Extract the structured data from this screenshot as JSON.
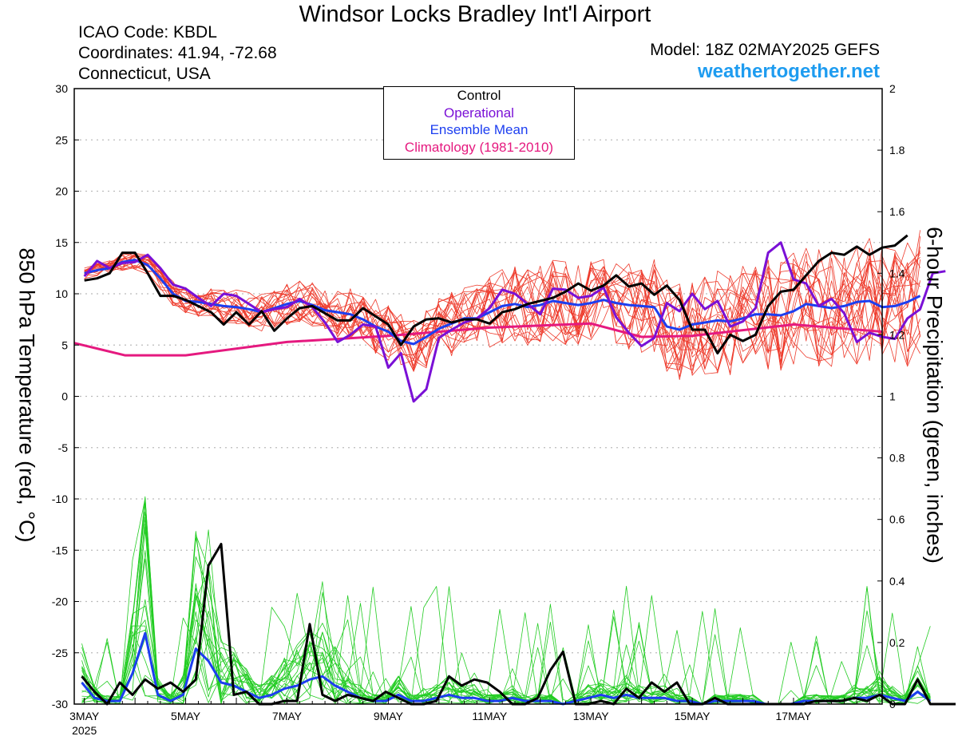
{
  "header": {
    "title": "Windsor Locks Bradley Int'l Airport",
    "icao": "ICAO Code: KBDL",
    "coords": "Coordinates: 41.94, -72.68",
    "region": "Connecticut, USA",
    "model": "Model: 18Z 02MAY2025 GEFS",
    "site": "weathertogether.net"
  },
  "legend": {
    "control": "Control",
    "operational": "Operational",
    "mean": "Ensemble Mean",
    "climatology": "Climatology (1981-2010)"
  },
  "colors": {
    "control": "#000000",
    "operational": "#7a10d6",
    "mean": "#1c3ef0",
    "climatology": "#e5197f",
    "members_temp": "#ee3b2c",
    "members_precip": "#22cc22",
    "site": "#1e9cf0"
  },
  "chart_data": {
    "type": "line",
    "ylabel_left": "850 hPa Temperature (red, °C)",
    "ylabel_right": "6-hour Precipitation (green, inches)",
    "ylim_left": [
      -30,
      30
    ],
    "ylim_right": [
      0,
      2
    ],
    "yticks_left": [
      "30",
      "25",
      "20",
      "15",
      "10",
      "5",
      "0",
      "-5",
      "-10",
      "-15",
      "-20",
      "-25",
      "-30"
    ],
    "yticks_right": [
      "2",
      "1.8",
      "1.6",
      "1.4",
      "1.2",
      "1",
      "0.8",
      "0.6",
      "0.4",
      "0.2",
      "0"
    ],
    "x_unit": "day offset from 3MAY 00Z",
    "xlim": [
      -0.2,
      15.75
    ],
    "xticks": [
      {
        "x": 0,
        "label": "3MAY",
        "sub": "2025"
      },
      {
        "x": 2,
        "label": "5MAY"
      },
      {
        "x": 4,
        "label": "7MAY"
      },
      {
        "x": 6,
        "label": "9MAY"
      },
      {
        "x": 8,
        "label": "11MAY"
      },
      {
        "x": 10,
        "label": "13MAY"
      },
      {
        "x": 12,
        "label": "15MAY"
      },
      {
        "x": 14,
        "label": "17MAY"
      }
    ],
    "grid": true,
    "series": [
      {
        "name": "Control",
        "axis": "left",
        "x_start": 0,
        "x_step": 0.25,
        "values": [
          11.3,
          11.5,
          12,
          14,
          14,
          12,
          9.8,
          9.8,
          9.4,
          8.8,
          8.2,
          7,
          8.2,
          7,
          8.3,
          6.4,
          7.6,
          8.6,
          8.8,
          8.1,
          7.4,
          7.4,
          8.6,
          7.8,
          7,
          5,
          6.8,
          7.5,
          7.6,
          7.2,
          7.5,
          7.5,
          7.1,
          8.2,
          8.5,
          9,
          9.3,
          9.6,
          10.2,
          11,
          10.3,
          10.8,
          11.8,
          10.7,
          11,
          9.9,
          10.8,
          9.4,
          6.5,
          6.5,
          4.2,
          6,
          5.4,
          6,
          8.8,
          10.2,
          10.4,
          11.8,
          13.2,
          14,
          13.8,
          14.6,
          13.8,
          14.5,
          14.7,
          15.7
        ]
      },
      {
        "name": "Operational",
        "axis": "left",
        "x_start": 0,
        "x_step": 0.25,
        "values": [
          11.7,
          13.2,
          12.5,
          13,
          13.1,
          13.8,
          12.5,
          10.9,
          10.5,
          9.6,
          8.8,
          10,
          9.8,
          9,
          8.2,
          8.5,
          8.7,
          9.5,
          8.7,
          7.2,
          5.3,
          6,
          7,
          6.8,
          2.8,
          4.2,
          -0.5,
          0.7,
          5.7,
          6.5,
          7.2,
          7.6,
          8.6,
          10.4,
          10,
          9,
          8,
          10.5,
          10.4,
          9.6,
          9.8,
          10.6,
          7.7,
          6.2,
          4.9,
          5.7,
          9.1,
          8.3,
          10,
          8.5,
          9.3,
          6.8,
          7.3,
          8.6,
          14,
          15,
          11.4,
          11,
          8.8,
          9.5,
          8.1,
          5.3,
          6.2,
          5.8,
          5.6,
          7.6,
          8.5,
          12,
          12.2
        ]
      },
      {
        "name": "Ensemble Mean",
        "axis": "left",
        "x_start": 0,
        "x_step": 0.25,
        "values": [
          12,
          12.3,
          12.5,
          13.1,
          13.3,
          12.8,
          11.5,
          10,
          9.3,
          9.2,
          9,
          8.8,
          8.7,
          8.5,
          8.2,
          8.6,
          9,
          9.3,
          8.9,
          8.4,
          8.2,
          8,
          7.5,
          6.8,
          6.3,
          5.4,
          5.1,
          5.8,
          6.6,
          7.1,
          7.6,
          7.6,
          8.2,
          8.8,
          9,
          8.7,
          8.9,
          9.3,
          9.1,
          8.9,
          9.1,
          9.4,
          9.1,
          8.9,
          8.8,
          8.7,
          6.8,
          6.5,
          7,
          7.2,
          7.4,
          7.3,
          7.6,
          8,
          8,
          7.9,
          8.3,
          9,
          8.8,
          8.6,
          8.8,
          9.2,
          9.3,
          8.7,
          8.8,
          9.2,
          9.8
        ]
      },
      {
        "name": "Climatology (1981-2010)",
        "axis": "left",
        "x": [
          -0.2,
          0.8,
          2,
          4,
          6,
          8,
          10,
          11,
          12,
          14,
          15.75
        ],
        "values": [
          5.2,
          4,
          4,
          5.3,
          5.9,
          6.7,
          7.1,
          5.8,
          5.9,
          7,
          6.3
        ]
      },
      {
        "name": "Control precip",
        "axis": "right",
        "x_start": -0.05,
        "x_step": 0.25,
        "values": [
          0.09,
          0.04,
          0,
          0.07,
          0.03,
          0.08,
          0.05,
          0.07,
          0.04,
          0.08,
          0.45,
          0.52,
          0.03,
          0.04,
          0,
          0,
          0.01,
          0.01,
          0.26,
          0.03,
          0.01,
          0.03,
          0.02,
          0.01,
          0.04,
          0.02,
          0,
          0,
          0.01,
          0.09,
          0.06,
          0.08,
          0.07,
          0.04,
          0,
          0,
          0.02,
          0.11,
          0.17,
          0,
          0,
          0.01,
          0,
          0.05,
          0.02,
          0.07,
          0.04,
          0.07,
          0,
          0,
          0.02,
          0,
          0,
          0,
          0,
          0,
          0,
          0,
          0.01,
          0.01,
          0.01,
          0.02,
          0.01,
          0.03,
          0,
          0,
          0.08,
          0,
          0,
          0
        ]
      },
      {
        "name": "Ensemble Mean precip",
        "axis": "right",
        "x_start": -0.05,
        "x_step": 0.25,
        "values": [
          0.07,
          0.02,
          0.01,
          0.01,
          0.1,
          0.23,
          0.03,
          0.01,
          0.03,
          0.18,
          0.14,
          0.07,
          0.06,
          0.04,
          0.02,
          0.03,
          0.05,
          0.06,
          0.08,
          0.09,
          0.06,
          0.04,
          0.02,
          0.01,
          0.01,
          0.03,
          0.01,
          0.01,
          0.02,
          0.03,
          0.02,
          0.02,
          0.01,
          0.01,
          0.02,
          0.01,
          0.01,
          0.01,
          0,
          0.01,
          0.02,
          0.03,
          0.02,
          0.03,
          0.02,
          0.02,
          0.02,
          0.01,
          0.01,
          0,
          0.01,
          0.01,
          0.01,
          0.01,
          0,
          0,
          0,
          0.01,
          0.01,
          0.01,
          0.01,
          0.02,
          0.02,
          0.03,
          0.02,
          0.01,
          0.04,
          0.01
        ]
      }
    ],
    "ensemble_members": {
      "temperature_count": 20,
      "precipitation_count": 20,
      "note_colors": "red (temperature) / green (precipitation)"
    }
  }
}
